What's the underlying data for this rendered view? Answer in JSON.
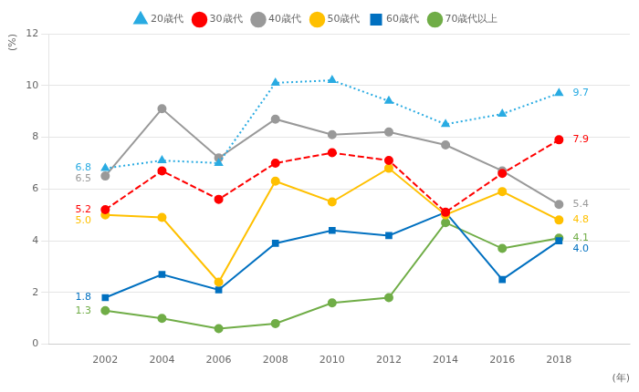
{
  "chart_data": {
    "type": "line",
    "x_label": "(年)",
    "y_label": "(%)",
    "x": [
      2002,
      2004,
      2006,
      2008,
      2010,
      2012,
      2014,
      2016,
      2018
    ],
    "xlim": [
      2000,
      2020.5
    ],
    "xticks": [
      2002,
      2004,
      2006,
      2008,
      2010,
      2012,
      2014,
      2016,
      2018
    ],
    "ylim": [
      0,
      12
    ],
    "yticks": [
      0,
      2,
      4,
      6,
      8,
      10,
      12
    ],
    "grid": "y",
    "legend": "top",
    "series": [
      {
        "name": "20歳代",
        "color": "#29ABE2",
        "marker": "triangle",
        "line_style": "dotted",
        "values": [
          6.8,
          7.1,
          7.0,
          10.1,
          10.2,
          9.4,
          8.5,
          8.9,
          9.7
        ]
      },
      {
        "name": "30歳代",
        "color": "#FF0000",
        "marker": "circle",
        "line_style": "dashed",
        "values": [
          5.2,
          6.7,
          5.6,
          7.0,
          7.4,
          7.1,
          5.1,
          6.6,
          7.9
        ]
      },
      {
        "name": "40歳代",
        "color": "#999999",
        "marker": "circle",
        "line_style": "solid",
        "values": [
          6.5,
          9.1,
          7.2,
          8.7,
          8.1,
          8.2,
          7.7,
          6.7,
          5.4
        ]
      },
      {
        "name": "50歳代",
        "color": "#FFC000",
        "marker": "circle",
        "line_style": "solid",
        "values": [
          5.0,
          4.9,
          2.4,
          6.3,
          5.5,
          6.8,
          5.0,
          5.9,
          4.8
        ]
      },
      {
        "name": "60歳代",
        "color": "#0070C0",
        "marker": "square",
        "line_style": "solid",
        "values": [
          1.8,
          2.7,
          2.1,
          3.9,
          4.4,
          4.2,
          5.1,
          2.5,
          4.0
        ]
      },
      {
        "name": "70歳代以上",
        "color": "#70AD47",
        "marker": "circle",
        "line_style": "solid",
        "values": [
          1.3,
          1.0,
          0.6,
          0.8,
          1.6,
          1.8,
          4.7,
          3.7,
          4.1
        ]
      }
    ],
    "annotations": [
      {
        "text": "6.8",
        "x": 2002,
        "y": 6.8,
        "color": "#29ABE2"
      },
      {
        "text": "5.2",
        "x": 2002,
        "y": 5.2,
        "color": "#FF0000"
      },
      {
        "text": "6.5",
        "x": 2002,
        "y": 6.5,
        "color": "#999999"
      },
      {
        "text": "5.0",
        "x": 2002,
        "y": 5.0,
        "color": "#FFC000"
      },
      {
        "text": "1.8",
        "x": 2002,
        "y": 1.8,
        "color": "#0070C0"
      },
      {
        "text": "1.3",
        "x": 2002,
        "y": 1.3,
        "color": "#70AD47"
      },
      {
        "text": "9.7",
        "x": 2018,
        "y": 9.7,
        "color": "#29ABE2"
      },
      {
        "text": "7.9",
        "x": 2018,
        "y": 7.9,
        "color": "#FF0000"
      },
      {
        "text": "5.4",
        "x": 2018,
        "y": 5.4,
        "color": "#999999"
      },
      {
        "text": "4.8",
        "x": 2018,
        "y": 4.8,
        "color": "#FFC000"
      },
      {
        "text": "4.0",
        "x": 2018,
        "y": 4.0,
        "color": "#0070C0"
      },
      {
        "text": "4.1",
        "x": 2018,
        "y": 4.1,
        "color": "#70AD47"
      }
    ]
  }
}
